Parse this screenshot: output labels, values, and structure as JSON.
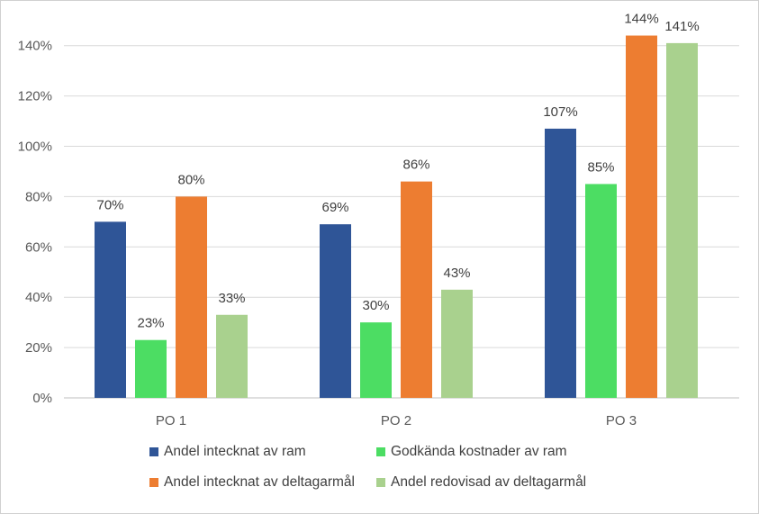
{
  "chart_data": {
    "type": "bar",
    "title": "",
    "xlabel": "",
    "ylabel": "",
    "categories": [
      "PO 1",
      "PO 2",
      "PO 3"
    ],
    "ylim": [
      0,
      160
    ],
    "yticks": [
      0,
      20,
      40,
      60,
      80,
      100,
      120,
      140
    ],
    "ytick_labels": [
      "0%",
      "20%",
      "40%",
      "60%",
      "80%",
      "100%",
      "120%",
      "140%"
    ],
    "grid": true,
    "legend_position": "bottom",
    "series": [
      {
        "name": "Andel intecknat av ram",
        "color": "#2F5597",
        "values": [
          70,
          69,
          107
        ],
        "labels": [
          "70%",
          "69%",
          "107%"
        ]
      },
      {
        "name": "Godkända kostnader av ram",
        "color": "#4CDD63",
        "values": [
          23,
          30,
          85
        ],
        "labels": [
          "23%",
          "30%",
          "85%"
        ]
      },
      {
        "name": "Andel intecknat av deltagarmål",
        "color": "#ED7D31",
        "values": [
          80,
          86,
          144
        ],
        "labels": [
          "80%",
          "86%",
          "144%"
        ]
      },
      {
        "name": "Andel redovisad av deltagarmål",
        "color": "#A9D18E",
        "values": [
          33,
          43,
          141
        ],
        "labels": [
          "33%",
          "43%",
          "141%"
        ]
      }
    ]
  },
  "colors": {
    "gridline": "#d9d9d9",
    "axis": "#bfbfbf",
    "text": "#595959"
  }
}
